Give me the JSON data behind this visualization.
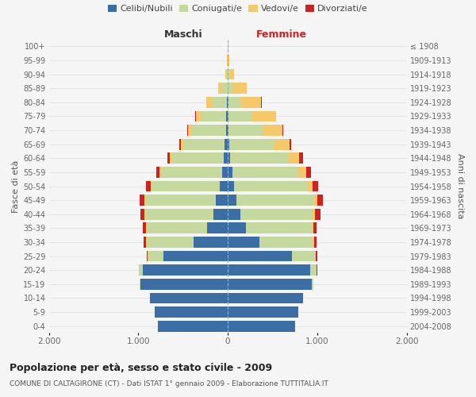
{
  "age_groups": [
    "0-4",
    "5-9",
    "10-14",
    "15-19",
    "20-24",
    "25-29",
    "30-34",
    "35-39",
    "40-44",
    "45-49",
    "50-54",
    "55-59",
    "60-64",
    "65-69",
    "70-74",
    "75-79",
    "80-84",
    "85-89",
    "90-94",
    "95-99",
    "100+"
  ],
  "birth_years": [
    "2004-2008",
    "1999-2003",
    "1994-1998",
    "1989-1993",
    "1984-1988",
    "1979-1983",
    "1974-1978",
    "1969-1973",
    "1964-1968",
    "1959-1963",
    "1954-1958",
    "1949-1953",
    "1944-1948",
    "1939-1943",
    "1934-1938",
    "1929-1933",
    "1924-1928",
    "1919-1923",
    "1914-1918",
    "1909-1913",
    "≤ 1908"
  ],
  "males": {
    "celibi": [
      780,
      820,
      870,
      980,
      950,
      720,
      380,
      230,
      160,
      130,
      90,
      65,
      45,
      35,
      20,
      15,
      8,
      5,
      2,
      1,
      0
    ],
    "coniugati": [
      0,
      0,
      0,
      8,
      40,
      170,
      530,
      680,
      760,
      790,
      760,
      680,
      580,
      460,
      380,
      280,
      170,
      60,
      15,
      4,
      1
    ],
    "vedovi": [
      0,
      0,
      0,
      0,
      1,
      3,
      5,
      8,
      10,
      12,
      15,
      18,
      22,
      30,
      45,
      60,
      60,
      40,
      12,
      3,
      1
    ],
    "divorziati": [
      0,
      0,
      0,
      1,
      4,
      12,
      25,
      35,
      50,
      55,
      50,
      40,
      30,
      18,
      12,
      8,
      4,
      2,
      1,
      0,
      0
    ]
  },
  "females": {
    "nubili": [
      750,
      790,
      840,
      940,
      920,
      720,
      350,
      200,
      140,
      100,
      70,
      50,
      30,
      20,
      12,
      8,
      4,
      2,
      1,
      1,
      0
    ],
    "coniugate": [
      0,
      0,
      0,
      15,
      70,
      260,
      600,
      740,
      810,
      860,
      820,
      740,
      640,
      500,
      390,
      270,
      140,
      50,
      12,
      3,
      1
    ],
    "vedove": [
      0,
      0,
      0,
      0,
      3,
      7,
      14,
      18,
      28,
      40,
      60,
      90,
      130,
      170,
      210,
      260,
      230,
      160,
      60,
      16,
      4
    ],
    "divorziate": [
      0,
      0,
      0,
      1,
      6,
      16,
      28,
      38,
      58,
      68,
      63,
      54,
      40,
      22,
      12,
      6,
      3,
      1,
      0,
      0,
      0
    ]
  },
  "colors": {
    "celibi": "#3a6ea5",
    "coniugati": "#c5d89e",
    "vedovi": "#f5c96a",
    "divorziati": "#cc2222"
  },
  "xlim": 2000,
  "title": "Popolazione per età, sesso e stato civile - 2009",
  "subtitle": "COMUNE DI CALTAGIRONE (CT) - Dati ISTAT 1° gennaio 2009 - Elaborazione TUTTITALIA.IT",
  "ylabel_left": "Fasce di età",
  "ylabel_right": "Anni di nascita",
  "xlabel_left": "Maschi",
  "xlabel_right": "Femmine",
  "bg_color": "#f5f5f5",
  "grid_color": "#dddddd"
}
